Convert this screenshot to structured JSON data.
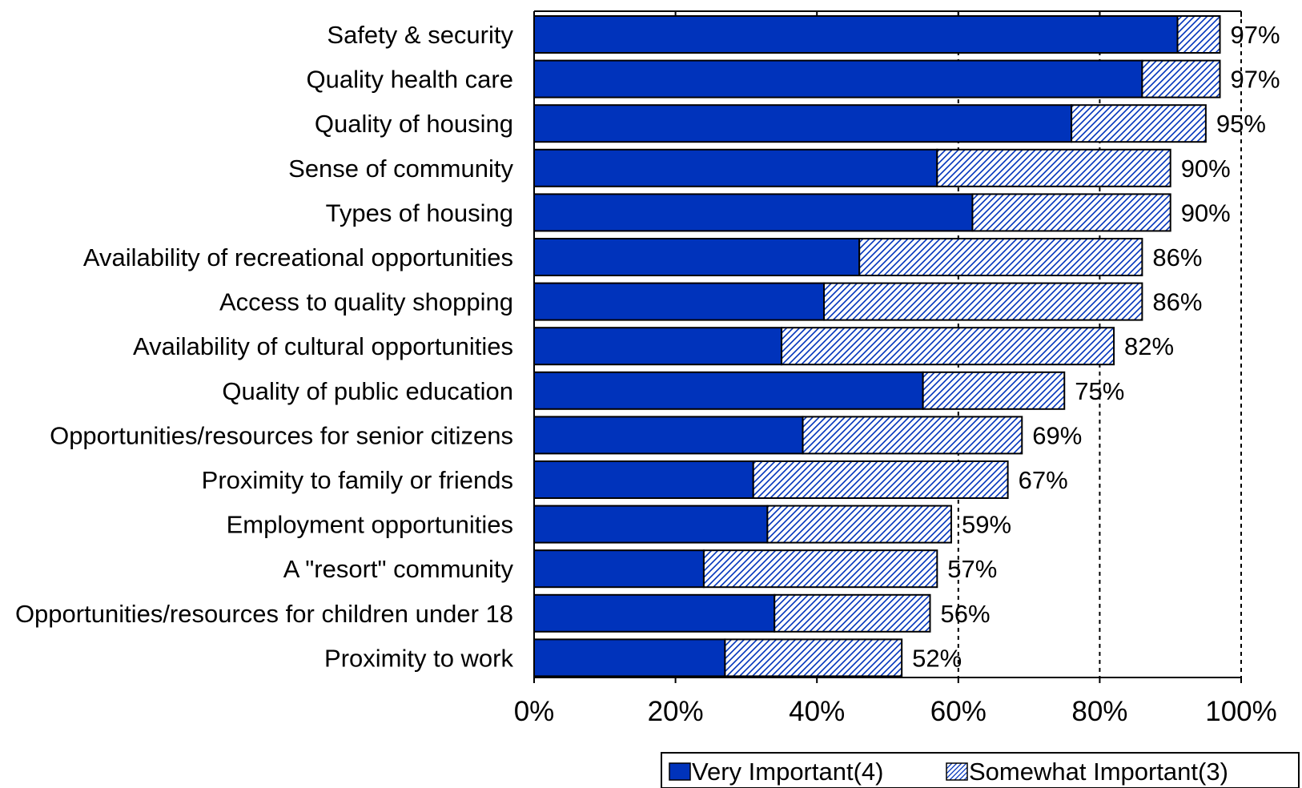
{
  "chart_data": {
    "type": "bar",
    "orientation": "horizontal",
    "stacked": true,
    "categories": [
      "Safety & security",
      "Quality health care",
      "Quality of housing",
      "Sense of community",
      "Types of housing",
      "Availability of recreational opportunities",
      "Access to quality shopping",
      "Availability of cultural opportunities",
      "Quality of public education",
      "Opportunities/resources for senior citizens",
      "Proximity to family or friends",
      "Employment opportunities",
      "A \"resort\" community",
      "Opportunities/resources for children under 18",
      "Proximity to work"
    ],
    "series": [
      {
        "name": "Very Important(4)",
        "values": [
          91,
          86,
          76,
          57,
          62,
          46,
          41,
          35,
          55,
          38,
          31,
          33,
          24,
          34,
          27
        ],
        "color": "#0033BB",
        "pattern": "solid"
      },
      {
        "name": "Somewhat Important(3)",
        "values": [
          6,
          11,
          19,
          33,
          28,
          40,
          45,
          47,
          20,
          31,
          36,
          26,
          33,
          22,
          25
        ],
        "color": "#0033BB",
        "pattern": "diagonal-hatch"
      }
    ],
    "data_labels": [
      "97%",
      "97%",
      "95%",
      "90%",
      "90%",
      "86%",
      "86%",
      "82%",
      "75%",
      "69%",
      "67%",
      "59%",
      "57%",
      "56%",
      "52%"
    ],
    "x_ticks": [
      "0%",
      "20%",
      "40%",
      "60%",
      "80%",
      "100%"
    ],
    "xlim": [
      0,
      100
    ],
    "reference_lines": [
      60,
      80,
      100
    ],
    "legend_position": "bottom-right",
    "title": "",
    "xlabel": "",
    "ylabel": ""
  }
}
